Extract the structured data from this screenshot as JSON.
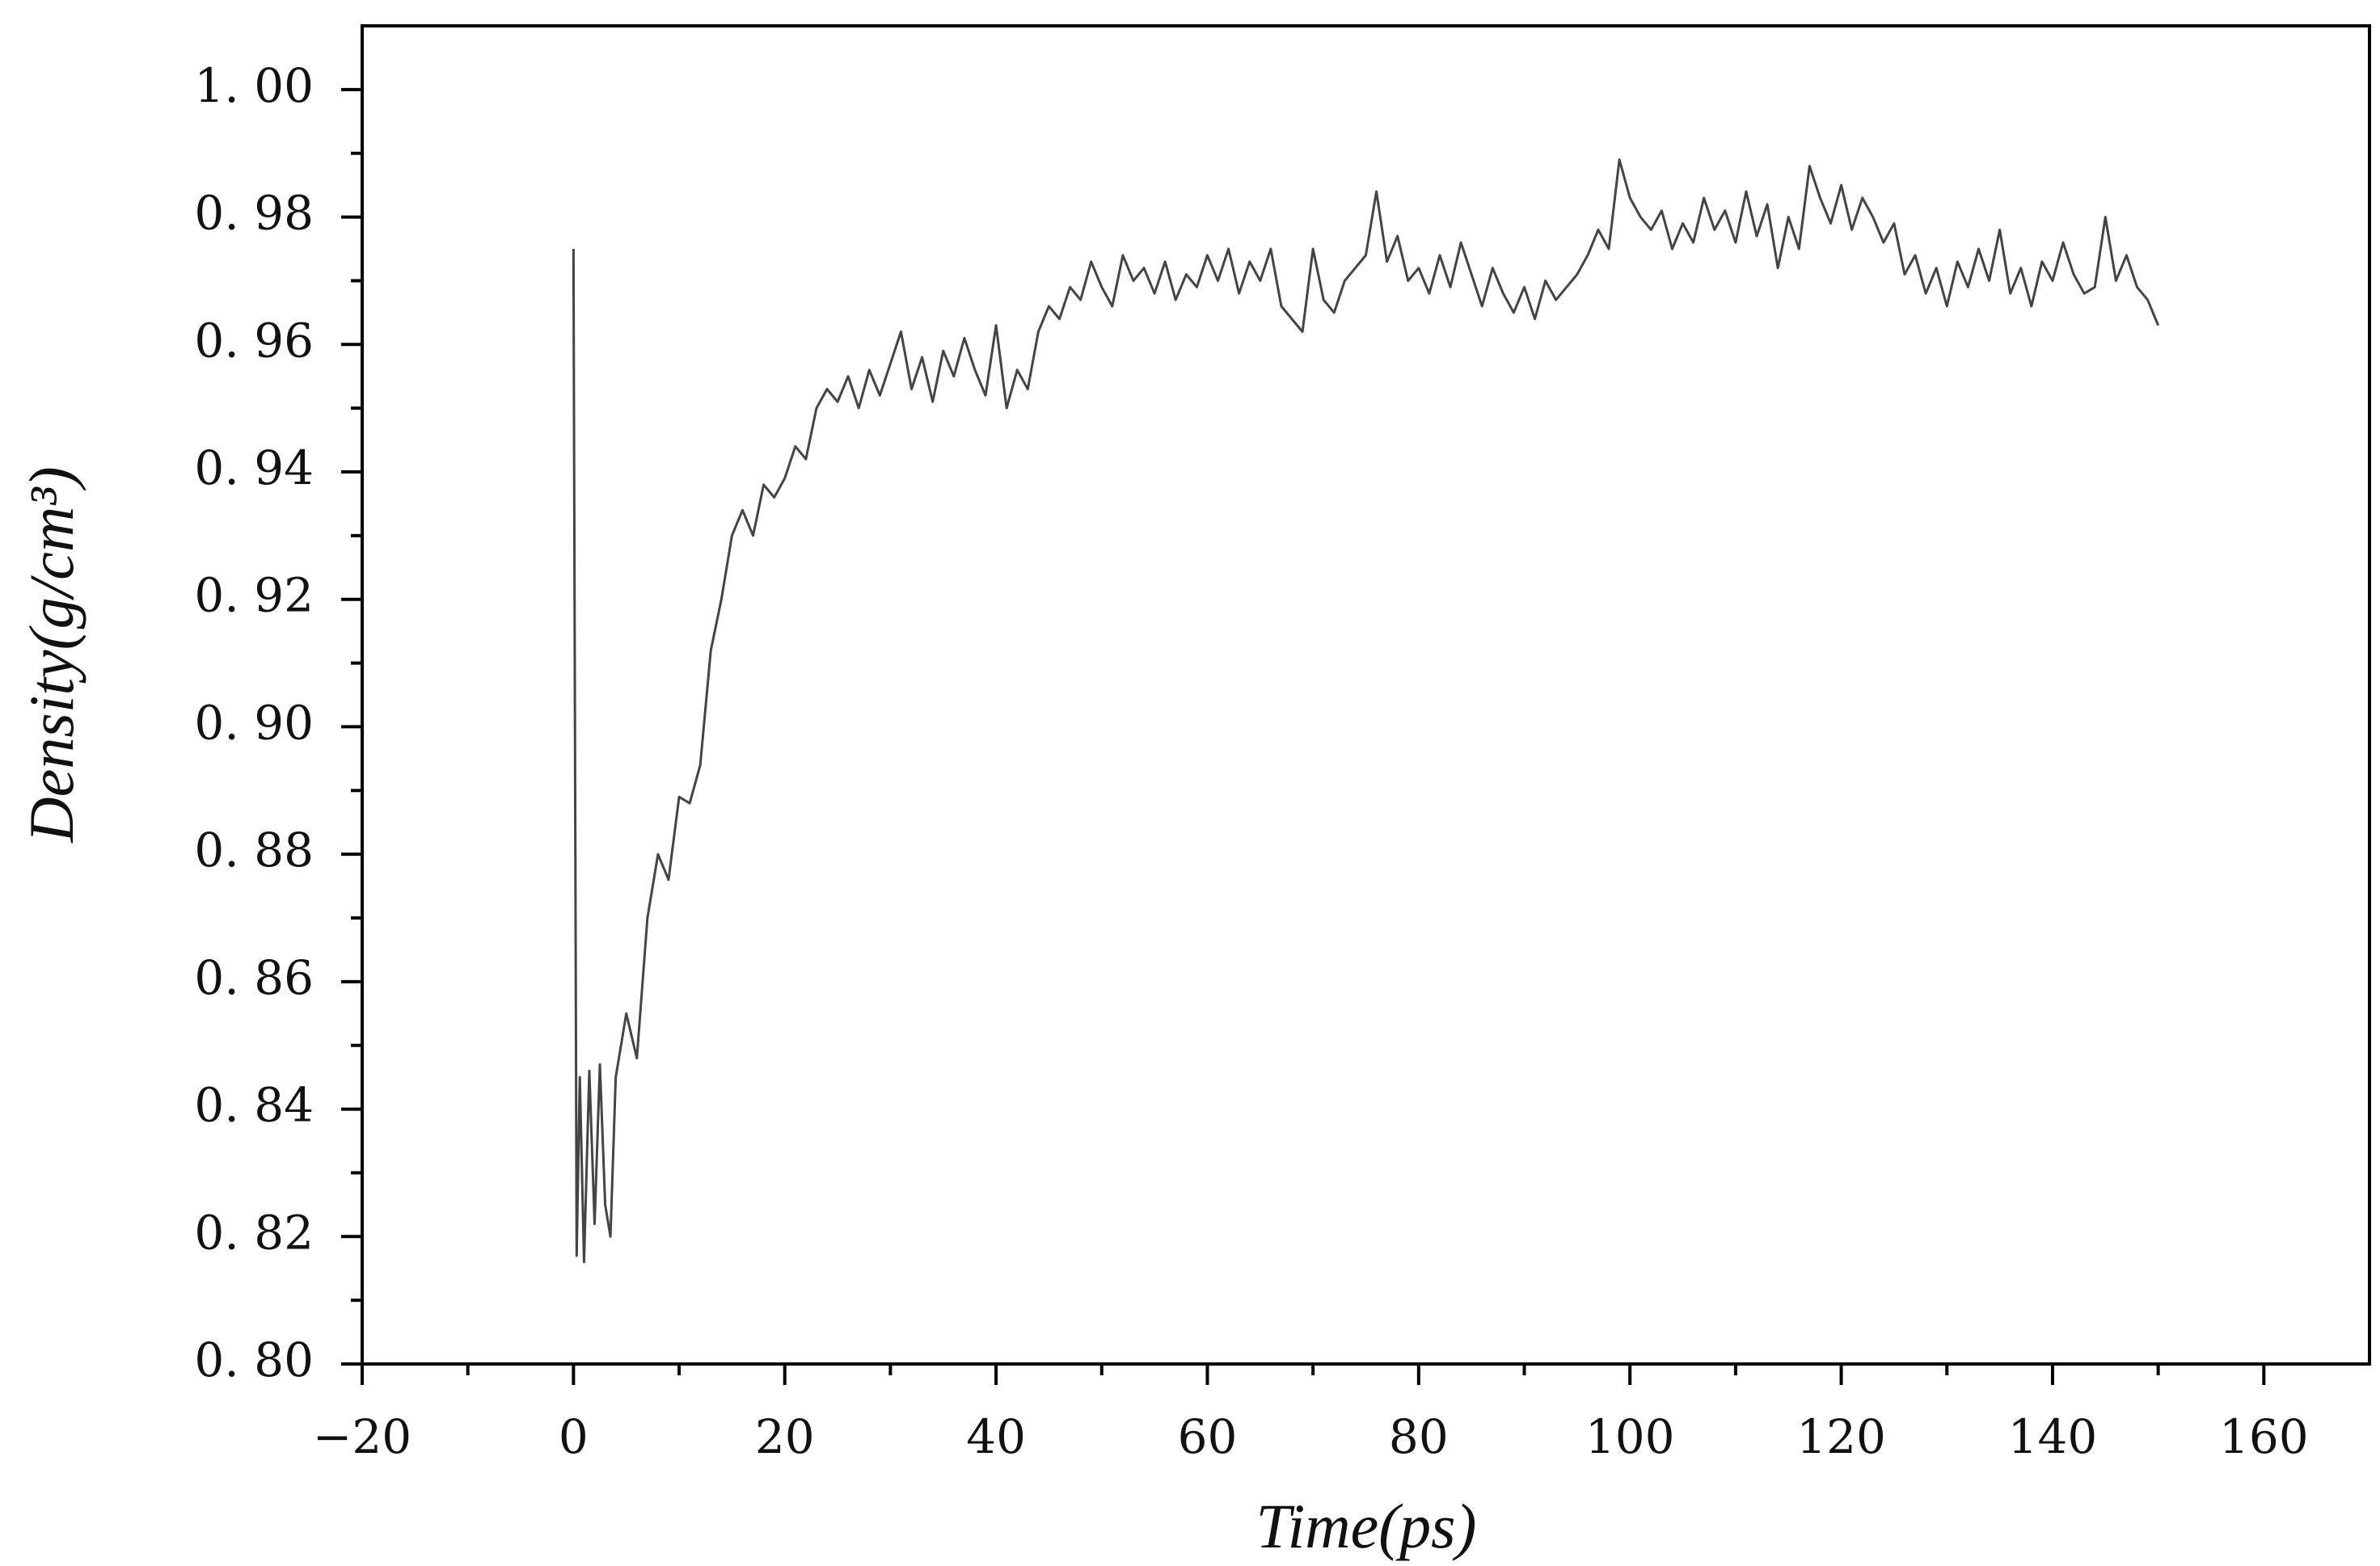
{
  "chart_data": {
    "type": "line",
    "xlabel": "Time(ps)",
    "ylabel": "Density(g/cm³)",
    "xlim": [
      -20,
      170
    ],
    "ylim": [
      0.8,
      1.01
    ],
    "xticks": [
      {
        "value": -20,
        "label": "−20"
      },
      0,
      20,
      40,
      60,
      80,
      100,
      120,
      140,
      160
    ],
    "yticks": [
      {
        "value": 0.8,
        "label": "0. 80"
      },
      {
        "value": 0.82,
        "label": "0. 82"
      },
      {
        "value": 0.84,
        "label": "0. 84"
      },
      {
        "value": 0.86,
        "label": "0. 86"
      },
      {
        "value": 0.88,
        "label": "0. 88"
      },
      {
        "value": 0.9,
        "label": "0. 90"
      },
      {
        "value": 0.92,
        "label": "0. 92"
      },
      {
        "value": 0.94,
        "label": "0. 94"
      },
      {
        "value": 0.96,
        "label": "0. 96"
      },
      {
        "value": 0.98,
        "label": "0. 98"
      },
      {
        "value": 1.0,
        "label": "1. 00"
      }
    ],
    "grid": false,
    "x": [
      0,
      0.3,
      0.6,
      1,
      1.5,
      2,
      2.5,
      3,
      3.5,
      4,
      5,
      6,
      7,
      8,
      9,
      10,
      11,
      12,
      13,
      14,
      15,
      16,
      17,
      18,
      19,
      20,
      21,
      22,
      23,
      24,
      25,
      26,
      27,
      28,
      29,
      30,
      31,
      32,
      33,
      34,
      35,
      36,
      37,
      38,
      39,
      40,
      41,
      42,
      43,
      44,
      45,
      46,
      47,
      48,
      49,
      50,
      51,
      52,
      53,
      54,
      55,
      56,
      57,
      58,
      59,
      60,
      61,
      62,
      63,
      64,
      65,
      66,
      67,
      68,
      69,
      70,
      71,
      72,
      73,
      74,
      75,
      76,
      77,
      78,
      79,
      80,
      81,
      82,
      83,
      84,
      85,
      86,
      87,
      88,
      89,
      90,
      91,
      92,
      93,
      94,
      95,
      96,
      97,
      98,
      99,
      100,
      101,
      102,
      103,
      104,
      105,
      106,
      107,
      108,
      109,
      110,
      111,
      112,
      113,
      114,
      115,
      116,
      117,
      118,
      119,
      120,
      121,
      122,
      123,
      124,
      125,
      126,
      127,
      128,
      129,
      130,
      131,
      132,
      133,
      134,
      135,
      136,
      137,
      138,
      139,
      140,
      141,
      142,
      143,
      144,
      145,
      146,
      147,
      148,
      149,
      150
    ],
    "series": [
      {
        "color": "#444444",
        "values": [
          0.975,
          0.817,
          0.845,
          0.816,
          0.846,
          0.822,
          0.847,
          0.825,
          0.82,
          0.845,
          0.855,
          0.848,
          0.87,
          0.88,
          0.876,
          0.889,
          0.888,
          0.894,
          0.912,
          0.92,
          0.93,
          0.934,
          0.93,
          0.938,
          0.936,
          0.939,
          0.944,
          0.942,
          0.95,
          0.953,
          0.951,
          0.955,
          0.95,
          0.956,
          0.952,
          0.957,
          0.962,
          0.953,
          0.958,
          0.951,
          0.959,
          0.955,
          0.961,
          0.956,
          0.952,
          0.963,
          0.95,
          0.956,
          0.953,
          0.962,
          0.966,
          0.964,
          0.969,
          0.967,
          0.973,
          0.969,
          0.966,
          0.974,
          0.97,
          0.972,
          0.968,
          0.973,
          0.967,
          0.971,
          0.969,
          0.974,
          0.97,
          0.975,
          0.968,
          0.973,
          0.97,
          0.975,
          0.966,
          0.964,
          0.962,
          0.975,
          0.967,
          0.965,
          0.97,
          0.972,
          0.974,
          0.984,
          0.973,
          0.977,
          0.97,
          0.972,
          0.968,
          0.974,
          0.969,
          0.976,
          0.971,
          0.966,
          0.972,
          0.968,
          0.965,
          0.969,
          0.964,
          0.97,
          0.967,
          0.969,
          0.971,
          0.974,
          0.978,
          0.975,
          0.989,
          0.983,
          0.98,
          0.978,
          0.981,
          0.975,
          0.979,
          0.976,
          0.983,
          0.978,
          0.981,
          0.976,
          0.984,
          0.977,
          0.982,
          0.972,
          0.98,
          0.975,
          0.988,
          0.983,
          0.979,
          0.985,
          0.978,
          0.983,
          0.98,
          0.976,
          0.979,
          0.971,
          0.974,
          0.968,
          0.972,
          0.966,
          0.973,
          0.969,
          0.975,
          0.97,
          0.978,
          0.968,
          0.972,
          0.966,
          0.973,
          0.97,
          0.976,
          0.971,
          0.968,
          0.969,
          0.98,
          0.97,
          0.974,
          0.969,
          0.967,
          0.963
        ]
      }
    ]
  }
}
